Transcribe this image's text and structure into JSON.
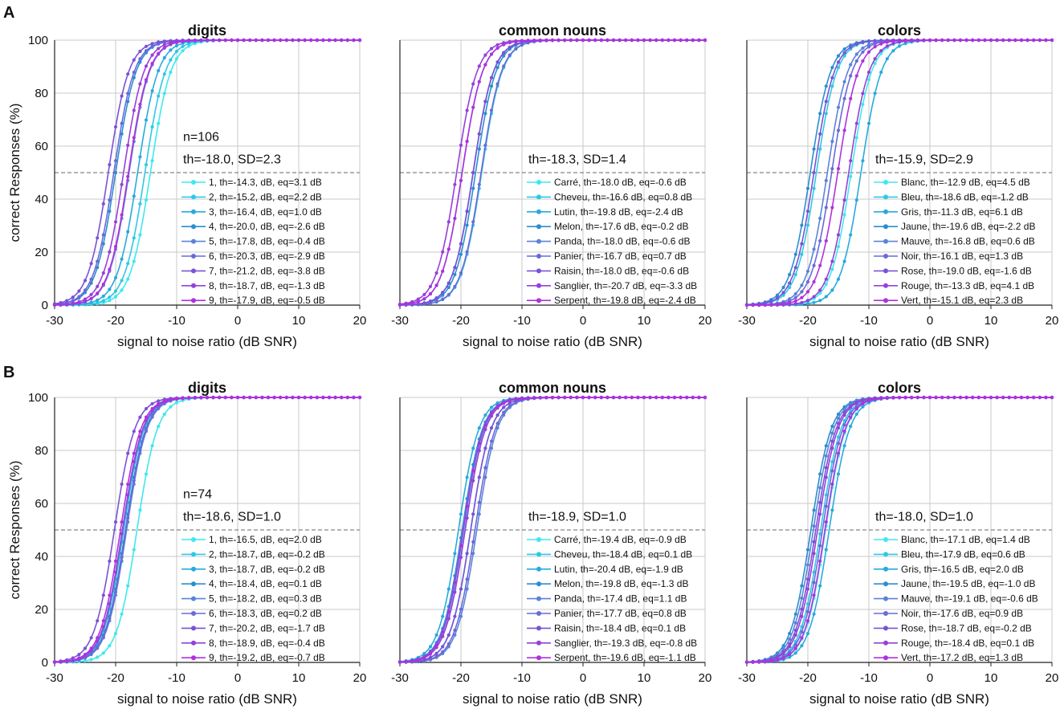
{
  "figure": {
    "panel_labels": [
      "A",
      "B"
    ],
    "legend_label_order": "bottom-to-top of each legend list mirrors series order top-to-bottom"
  },
  "colors": {
    "grid": "#c8c8c8",
    "axis": "#222222",
    "chance_line": "#888888",
    "series_palette": [
      "#3ee8ee",
      "#2ec8e6",
      "#28aadc",
      "#2a8ed0",
      "#5a84d8",
      "#6a6ad8",
      "#7a52d6",
      "#9640d8",
      "#b030e0"
    ]
  },
  "chart_data": [
    {
      "id": "A-digits",
      "type": "line",
      "title": "digits",
      "xlabel": "signal to noise ratio (dB SNR)",
      "ylabel": "correct Responses (%)",
      "xlim": [
        -30,
        20
      ],
      "ylim": [
        0,
        100
      ],
      "xticks": [
        "-30",
        "-20",
        "-10",
        "0",
        "10",
        "20"
      ],
      "yticks": [
        "0",
        "20",
        "40",
        "60",
        "80",
        "100"
      ],
      "reference_y": 50,
      "n_label": "n=106",
      "summary": "th=-18.0, SD=2.3",
      "series": [
        {
          "label": "1, th=-14.3, dB, eq=3.1 dB",
          "th": -14.3
        },
        {
          "label": "2, th=-15.2, dB, eq=2.2 dB",
          "th": -15.2
        },
        {
          "label": "3, th=-16.4, dB, eq=1.0 dB",
          "th": -16.4
        },
        {
          "label": "4, th=-20.0, dB, eq=-2.6 dB",
          "th": -20.0
        },
        {
          "label": "5, th=-17.8, dB, eq=-0.4 dB",
          "th": -17.8
        },
        {
          "label": "6, th=-20.3, dB, eq=-2.9 dB",
          "th": -20.3
        },
        {
          "label": "7, th=-21.2, dB, eq=-3.8 dB",
          "th": -21.2
        },
        {
          "label": "8, th=-18.7, dB, eq=-1.3 dB",
          "th": -18.7
        },
        {
          "label": "9, th=-17.9, dB, eq=-0.5 dB",
          "th": -17.9
        }
      ]
    },
    {
      "id": "A-nouns",
      "type": "line",
      "title": "common nouns",
      "xlabel": "signal to noise ratio (dB SNR)",
      "ylabel": "",
      "xlim": [
        -30,
        20
      ],
      "ylim": [
        0,
        100
      ],
      "xticks": [
        "-30",
        "-20",
        "-10",
        "0",
        "10",
        "20"
      ],
      "yticks": [],
      "reference_y": 50,
      "n_label": "",
      "summary": "th=-18.3, SD=1.4",
      "series": [
        {
          "label": "Carré, th=-18.0 dB, eq=-0.6 dB",
          "th": -18.0
        },
        {
          "label": "Cheveu, th=-16.6 dB, eq=0.8 dB",
          "th": -16.6
        },
        {
          "label": "Lutin, th=-19.8 dB, eq=-2.4 dB",
          "th": -19.8
        },
        {
          "label": "Melon, th=-17.6 dB, eq=-0.2 dB",
          "th": -17.6
        },
        {
          "label": "Panda, th=-18.0 dB, eq=-0.6 dB",
          "th": -18.0
        },
        {
          "label": "Panier, th=-16.7 dB, eq=0.7 dB",
          "th": -16.7
        },
        {
          "label": "Raisin, th=-18.0 dB, eq=-0.6 dB",
          "th": -18.0
        },
        {
          "label": "Sanglier, th=-20.7 dB, eq=-3.3 dB",
          "th": -20.7
        },
        {
          "label": "Serpent, th=-19.8 dB, eq=-2.4 dB",
          "th": -19.8
        }
      ]
    },
    {
      "id": "A-colors",
      "type": "line",
      "title": "colors",
      "xlabel": "signal to noise ratio (dB SNR)",
      "ylabel": "",
      "xlim": [
        -30,
        20
      ],
      "ylim": [
        0,
        100
      ],
      "xticks": [
        "-30",
        "-20",
        "-10",
        "0",
        "10",
        "20"
      ],
      "yticks": [],
      "reference_y": 50,
      "n_label": "",
      "summary": "th=-15.9, SD=2.9",
      "series": [
        {
          "label": "Blanc, th=-12.9 dB, eq=4.5 dB",
          "th": -12.9
        },
        {
          "label": "Bleu, th=-18.6 dB, eq=-1.2 dB",
          "th": -18.6
        },
        {
          "label": "Gris, th=-11.3 dB, eq=6.1 dB",
          "th": -11.3
        },
        {
          "label": "Jaune, th=-19.6 dB, eq=-2.2 dB",
          "th": -19.6
        },
        {
          "label": "Mauve, th=-16.8 dB, eq=0.6 dB",
          "th": -16.8
        },
        {
          "label": "Noir, th=-16.1 dB, eq=1.3 dB",
          "th": -16.1
        },
        {
          "label": "Rose, th=-19.0 dB, eq=-1.6 dB",
          "th": -19.0
        },
        {
          "label": "Rouge, th=-13.3 dB, eq=4.1 dB",
          "th": -13.3
        },
        {
          "label": "Vert, th=-15.1 dB, eq=2.3 dB",
          "th": -15.1
        }
      ]
    },
    {
      "id": "B-digits",
      "type": "line",
      "title": "digits",
      "xlabel": "signal to noise ratio (dB SNR)",
      "ylabel": "correct Responses (%)",
      "xlim": [
        -30,
        20
      ],
      "ylim": [
        0,
        100
      ],
      "xticks": [
        "-30",
        "-20",
        "-10",
        "0",
        "10",
        "20"
      ],
      "yticks": [
        "0",
        "20",
        "40",
        "60",
        "80",
        "100"
      ],
      "reference_y": 50,
      "n_label": "n=74",
      "summary": "th=-18.6, SD=1.0",
      "series": [
        {
          "label": "1, th=-16.5, dB, eq=2.0 dB",
          "th": -16.5
        },
        {
          "label": "2, th=-18.7, dB, eq=-0.2 dB",
          "th": -18.7
        },
        {
          "label": "3, th=-18.7, dB, eq=-0.2 dB",
          "th": -18.7
        },
        {
          "label": "4, th=-18.4, dB, eq=0.1 dB",
          "th": -18.4
        },
        {
          "label": "5, th=-18.2, dB, eq=0.3 dB",
          "th": -18.2
        },
        {
          "label": "6, th=-18.3, dB, eq=0.2 dB",
          "th": -18.3
        },
        {
          "label": "7, th=-20.2, dB, eq=-1.7 dB",
          "th": -20.2
        },
        {
          "label": "8, th=-18.9, dB, eq=-0.4 dB",
          "th": -18.9
        },
        {
          "label": "9, th=-19.2, dB, eq=-0.7 dB",
          "th": -19.2
        }
      ]
    },
    {
      "id": "B-nouns",
      "type": "line",
      "title": "common nouns",
      "xlabel": "signal to noise ratio (dB SNR)",
      "ylabel": "",
      "xlim": [
        -30,
        20
      ],
      "ylim": [
        0,
        100
      ],
      "xticks": [
        "-30",
        "-20",
        "-10",
        "0",
        "10",
        "20"
      ],
      "yticks": [],
      "reference_y": 50,
      "n_label": "",
      "summary": "th=-18.9, SD=1.0",
      "series": [
        {
          "label": "Carré, th=-19.4 dB, eq=-0.9 dB",
          "th": -19.4
        },
        {
          "label": "Cheveu, th=-18.4 dB, eq=0.1 dB",
          "th": -18.4
        },
        {
          "label": "Lutin, th=-20.4 dB, eq=-1.9 dB",
          "th": -20.4
        },
        {
          "label": "Melon, th=-19.8 dB, eq=-1.3 dB",
          "th": -19.8
        },
        {
          "label": "Panda, th=-17.4 dB, eq=1.1 dB",
          "th": -17.4
        },
        {
          "label": "Panier, th=-17.7 dB, eq=0.8 dB",
          "th": -17.7
        },
        {
          "label": "Raisin, th=-18.4 dB, eq=0.1 dB",
          "th": -18.4
        },
        {
          "label": "Sanglier, th=-19.3 dB, eq=-0.8 dB",
          "th": -19.3
        },
        {
          "label": "Serpent, th=-19.6 dB, eq=-1.1 dB",
          "th": -19.6
        }
      ]
    },
    {
      "id": "B-colors",
      "type": "line",
      "title": "colors",
      "xlabel": "signal to noise ratio (dB SNR)",
      "ylabel": "",
      "xlim": [
        -30,
        20
      ],
      "ylim": [
        0,
        100
      ],
      "xticks": [
        "-30",
        "-20",
        "-10",
        "0",
        "10",
        "20"
      ],
      "yticks": [],
      "reference_y": 50,
      "n_label": "",
      "summary": "th=-18.0, SD=1.0",
      "series": [
        {
          "label": "Blanc, th=-17.1 dB, eq=1.4 dB",
          "th": -17.1
        },
        {
          "label": "Bleu, th=-17.9 dB, eq=0.6 dB",
          "th": -17.9
        },
        {
          "label": "Gris, th=-16.5 dB, eq=2.0 dB",
          "th": -16.5
        },
        {
          "label": "Jaune, th=-19.5 dB, eq=-1.0 dB",
          "th": -19.5
        },
        {
          "label": "Mauve, th=-19.1 dB, eq=-0.6 dB",
          "th": -19.1
        },
        {
          "label": "Noir, th=-17.6 dB, eq=0.9 dB",
          "th": -17.6
        },
        {
          "label": "Rose, th=-18.7 dB, eq=-0.2 dB",
          "th": -18.7
        },
        {
          "label": "Rouge, th=-18.4 dB, eq=0.1 dB",
          "th": -18.4
        },
        {
          "label": "Vert, th=-17.2 dB, eq=1.3 dB",
          "th": -17.2
        }
      ]
    }
  ]
}
